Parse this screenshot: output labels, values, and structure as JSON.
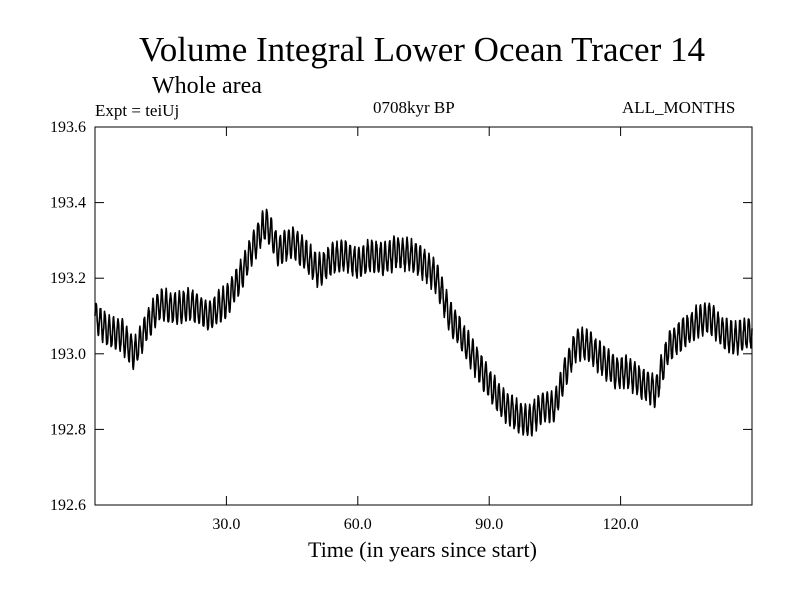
{
  "chart_data": {
    "type": "line",
    "title": "Volume Integral Lower Ocean Tracer 14",
    "subtitle": "Whole area",
    "experiment_label": "Expt = teiUj",
    "period_label": "0708kyr BP",
    "months_label": "ALL_MONTHS",
    "xlabel": "Time (in years since start)",
    "ylabel": "",
    "xlim": [
      0,
      150
    ],
    "ylim": [
      192.6,
      193.6
    ],
    "x_ticks": [
      30,
      60,
      90,
      120
    ],
    "x_tick_labels": [
      "30.0",
      "60.0",
      "90.0",
      "120.0"
    ],
    "y_ticks": [
      192.6,
      192.8,
      193.0,
      193.2,
      193.4,
      193.6
    ],
    "y_tick_labels": [
      "192.6",
      "192.8",
      "193.0",
      "193.2",
      "193.4",
      "193.6"
    ],
    "series": [
      {
        "name": "Volume integral",
        "sampling": "monthly",
        "seasonal_amplitude": 0.04,
        "trend_x": [
          0,
          3,
          6,
          9,
          12,
          15,
          18,
          22,
          26,
          30,
          33,
          36,
          39,
          42,
          45,
          48,
          51,
          54,
          57,
          60,
          63,
          66,
          69,
          72,
          75,
          78,
          81,
          84,
          87,
          90,
          93,
          96,
          99,
          102,
          105,
          107,
          110,
          113,
          116,
          119,
          122,
          125,
          128,
          131,
          134,
          137,
          140,
          143,
          146,
          150
        ],
        "trend_y": [
          193.1,
          193.06,
          193.05,
          193.0,
          193.08,
          193.13,
          193.12,
          193.13,
          193.1,
          193.14,
          193.2,
          193.28,
          193.35,
          193.27,
          193.3,
          193.26,
          193.22,
          193.25,
          193.26,
          193.24,
          193.26,
          193.25,
          193.27,
          193.26,
          193.24,
          193.2,
          193.1,
          193.04,
          192.98,
          192.92,
          192.87,
          192.84,
          192.82,
          192.86,
          192.86,
          192.94,
          193.03,
          193.02,
          192.98,
          192.95,
          192.95,
          192.92,
          192.9,
          193.02,
          193.05,
          193.08,
          193.1,
          193.06,
          193.04,
          193.06
        ]
      }
    ]
  }
}
